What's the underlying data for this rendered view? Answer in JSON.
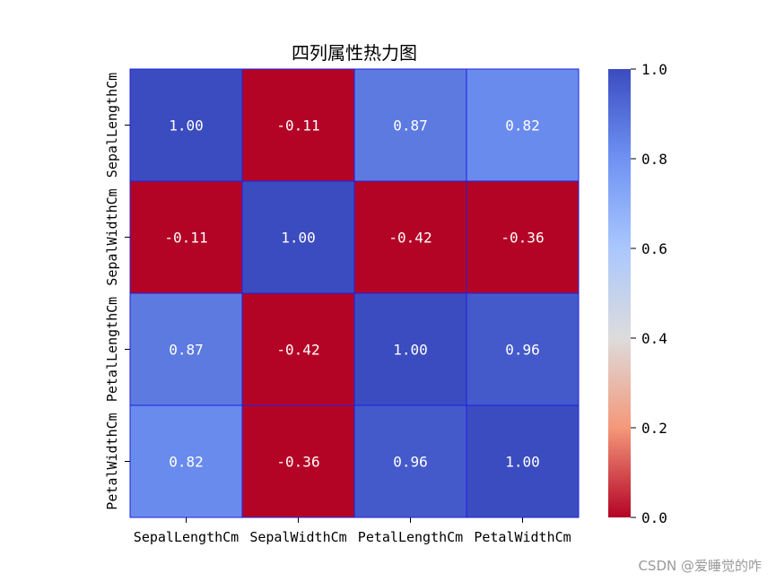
{
  "chart_data": {
    "type": "heatmap",
    "title": "四列属性热力图",
    "labels": [
      "SepalLengthCm",
      "SepalWidthCm",
      "PetalLengthCm",
      "PetalWidthCm"
    ],
    "values": [
      [
        1.0,
        -0.11,
        0.87,
        0.82
      ],
      [
        -0.11,
        1.0,
        -0.42,
        -0.36
      ],
      [
        0.87,
        -0.42,
        1.0,
        0.96
      ],
      [
        0.82,
        -0.36,
        0.96,
        1.0
      ]
    ],
    "value_labels": [
      [
        "1.00",
        "-0.11",
        "0.87",
        "0.82"
      ],
      [
        "-0.11",
        "1.00",
        "-0.42",
        "-0.36"
      ],
      [
        "0.87",
        "-0.42",
        "1.00",
        "0.96"
      ],
      [
        "0.82",
        "-0.36",
        "0.96",
        "1.00"
      ]
    ],
    "colormap": "coolwarm_r",
    "vmin": 0.0,
    "vmax": 1.0,
    "colorbar_ticks": [
      "0.0",
      "0.2",
      "0.4",
      "0.6",
      "0.8",
      "1.0"
    ],
    "cell_edge_color": "#1f1fe0",
    "colormap_stops": [
      "#b40426",
      "#f4987a",
      "#dddcdc",
      "#aac7fd",
      "#6f92f3",
      "#3b4cc0"
    ]
  },
  "watermark": "CSDN @爱睡觉的咋"
}
